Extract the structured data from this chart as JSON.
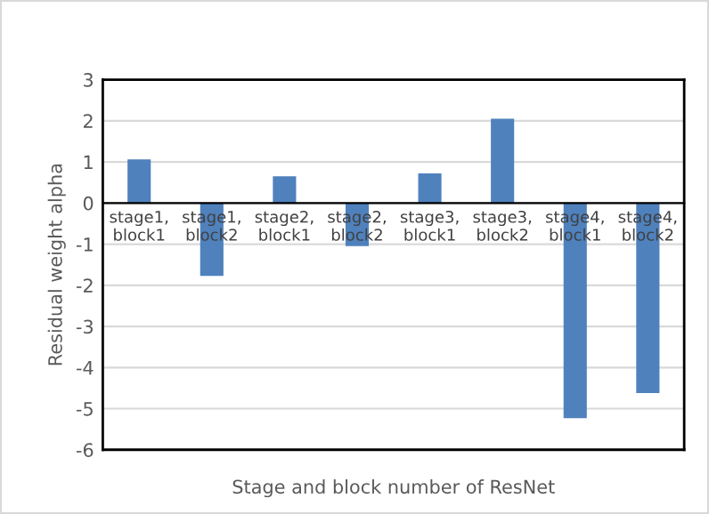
{
  "chart_data": {
    "type": "bar",
    "categories": [
      "stage1,\nblock1",
      "stage1,\nblock2",
      "stage2,\nblock1",
      "stage2,\nblock2",
      "stage3,\nblock1",
      "stage3,\nblock2",
      "stage4,\nblock1",
      "stage4,\nblock2"
    ],
    "values": [
      1.06,
      -1.77,
      0.65,
      -1.05,
      0.72,
      2.05,
      -5.23,
      -4.62
    ],
    "color": "#4f81bd",
    "xlabel": "Stage and block number of ResNet",
    "ylabel": "Residual weight alpha",
    "ylim": [
      -6,
      3
    ],
    "yticks": [
      -6,
      -5,
      -4,
      -3,
      -2,
      -1,
      0,
      1,
      2,
      3
    ],
    "grid": "y",
    "legend": false
  }
}
